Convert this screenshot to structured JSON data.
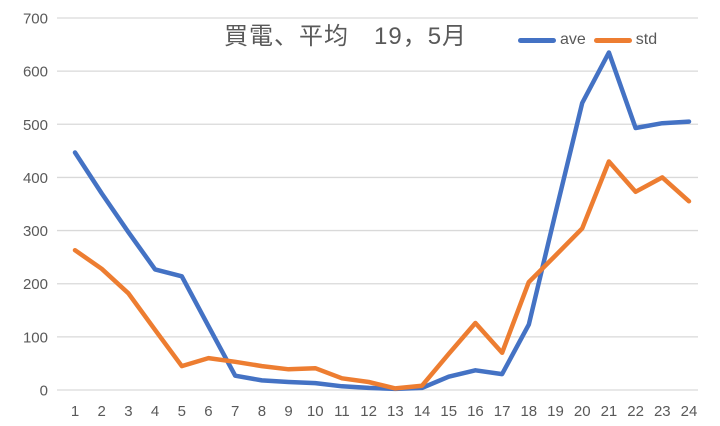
{
  "title": "買電、平均　19，5月",
  "colors": {
    "ave_line": "#4472C4",
    "std_line": "#ED7D31",
    "gridline": "#D9D9D9",
    "axis_text": "#595959",
    "background": "#FFFFFF"
  },
  "chart_data": {
    "type": "line",
    "title": "買電、平均　19，5月",
    "x": [
      1,
      2,
      3,
      4,
      5,
      6,
      7,
      8,
      9,
      10,
      11,
      12,
      13,
      14,
      15,
      16,
      17,
      18,
      19,
      20,
      21,
      22,
      23,
      24
    ],
    "xlabel": "",
    "ylabel": "",
    "ylim": [
      0,
      700
    ],
    "yticks": [
      0,
      100,
      200,
      300,
      400,
      500,
      600,
      700
    ],
    "grid": true,
    "legend_position": "top-right",
    "series": [
      {
        "name": "ave",
        "color": "#4472C4",
        "values": [
          447,
          370,
          297,
          227,
          214,
          120,
          27,
          18,
          15,
          13,
          7,
          4,
          2,
          4,
          25,
          37,
          30,
          123,
          333,
          540,
          635,
          493,
          502,
          505
        ]
      },
      {
        "name": "std",
        "color": "#ED7D31",
        "values": [
          263,
          228,
          182,
          113,
          45,
          60,
          53,
          45,
          39,
          41,
          22,
          15,
          3,
          8,
          68,
          126,
          70,
          203,
          253,
          304,
          430,
          373,
          400,
          355
        ]
      }
    ]
  }
}
